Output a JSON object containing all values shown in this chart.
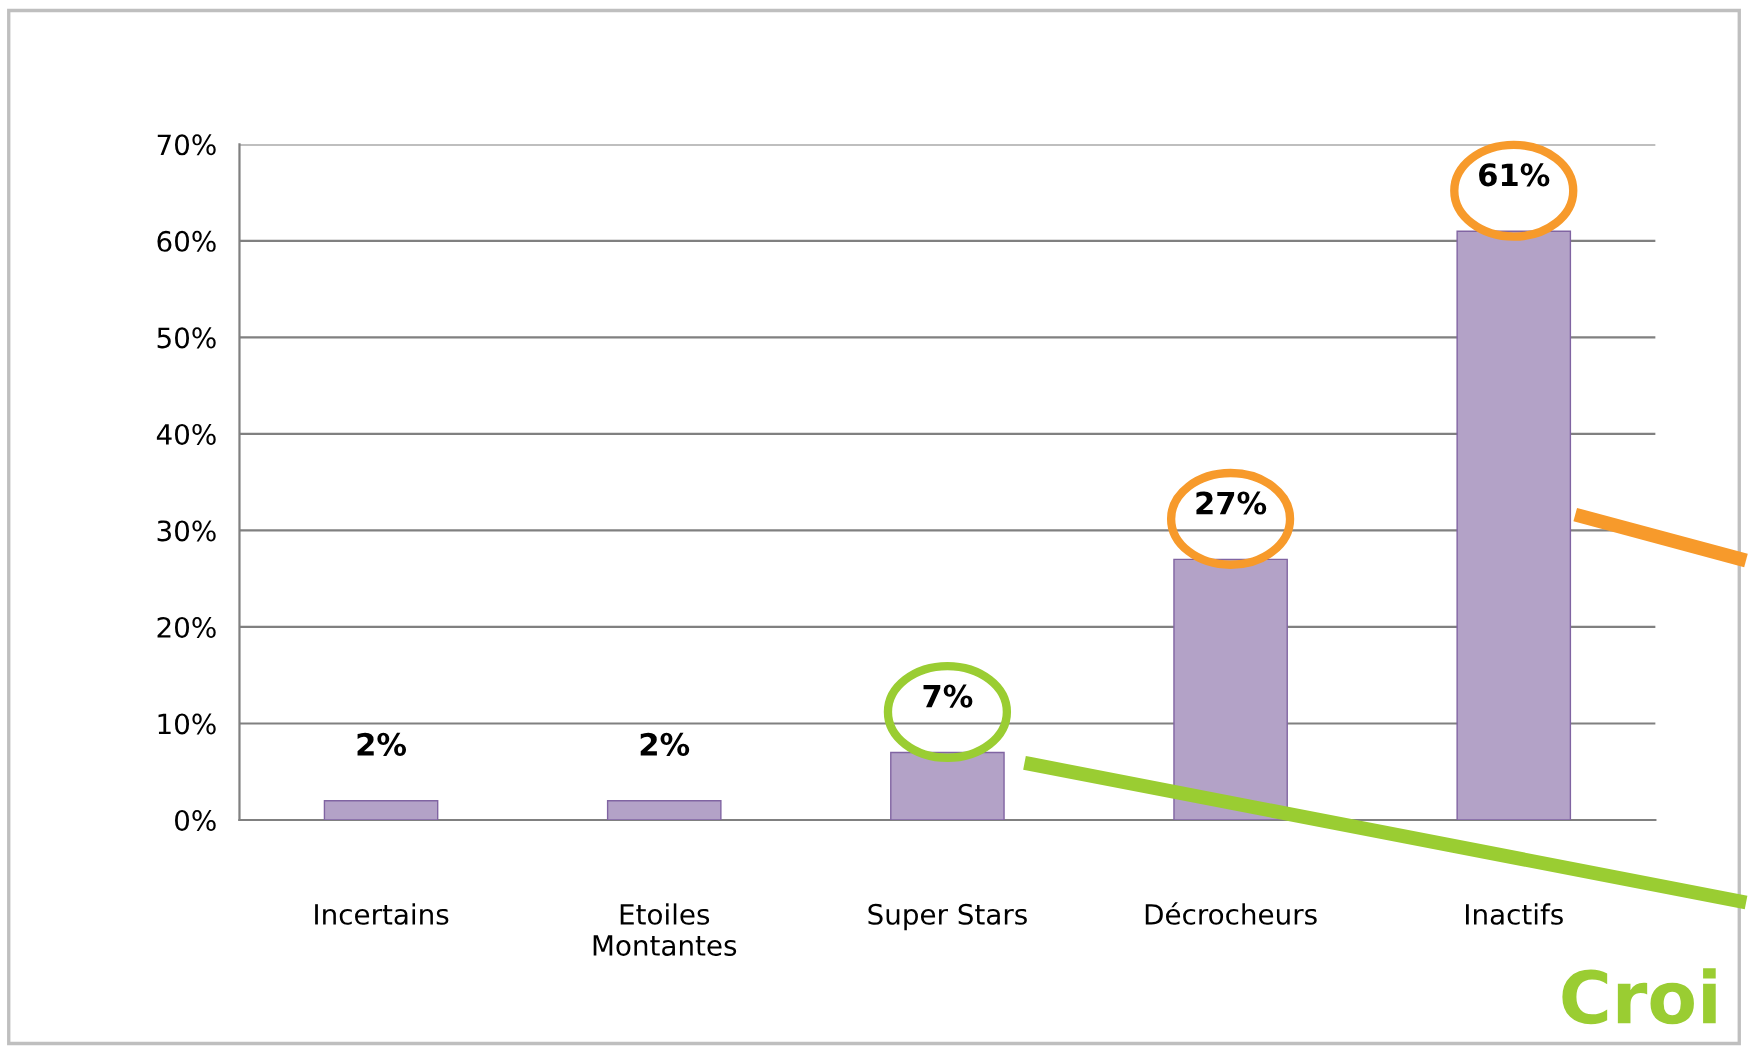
{
  "chart_data": {
    "type": "bar",
    "categories": [
      "Incertains",
      "Etoiles\nMontantes",
      "Super Stars",
      "Décrocheurs",
      "Inactifs"
    ],
    "values": [
      2,
      2,
      7,
      27,
      61
    ],
    "value_labels": [
      "2%",
      "2%",
      "7%",
      "27%",
      "61%"
    ],
    "color": "#b3a2c7",
    "ylim": [
      0,
      70
    ],
    "yticks": [
      {
        "value": 0,
        "label": "0%"
      },
      {
        "value": 10,
        "label": "10%"
      },
      {
        "value": 20,
        "label": "20%"
      },
      {
        "value": 30,
        "label": "30%"
      },
      {
        "value": 40,
        "label": "40%"
      },
      {
        "value": 50,
        "label": "50%"
      },
      {
        "value": 60,
        "label": "60%"
      },
      {
        "value": 70,
        "label": "70%"
      }
    ],
    "grid": "y",
    "annotations": [
      "Croi"
    ]
  }
}
